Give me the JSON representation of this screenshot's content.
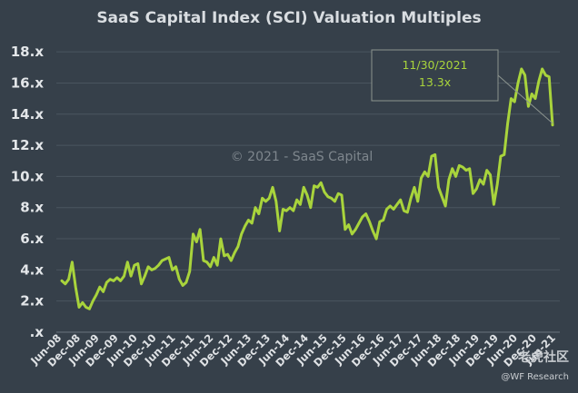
{
  "brand": {
    "logo_text": "老虎社区",
    "sub_text": "@WF Research"
  },
  "chart_data": {
    "type": "line",
    "title": "SaaS Capital Index (SCI) Valuation Multiples",
    "watermark": "© 2021 - SaaS Capital",
    "xlabel": "",
    "ylabel": "",
    "ylim": [
      0,
      19
    ],
    "grid": true,
    "y_ticks": [
      {
        "value": 0,
        "label": ".x"
      },
      {
        "value": 2,
        "label": "2.x"
      },
      {
        "value": 4,
        "label": "4.x"
      },
      {
        "value": 6,
        "label": "6.x"
      },
      {
        "value": 8,
        "label": "8.x"
      },
      {
        "value": 10,
        "label": "10.x"
      },
      {
        "value": 12,
        "label": "12.x"
      },
      {
        "value": 14,
        "label": "14.x"
      },
      {
        "value": 16,
        "label": "16.x"
      },
      {
        "value": 18,
        "label": "18.x"
      }
    ],
    "x_ticks": [
      "Jun-08",
      "Dec-08",
      "Jun-09",
      "Dec-09",
      "Jun-10",
      "Dec-10",
      "Jun-11",
      "Dec-11",
      "Jun-12",
      "Dec-12",
      "Jun-13",
      "Dec-13",
      "Jun-14",
      "Dec-14",
      "Jun-15",
      "Dec-15",
      "Jun-16",
      "Dec-16",
      "Jun-17",
      "Dec-17",
      "Jun-18",
      "Dec-18",
      "Jun-19",
      "Dec-19",
      "Jun-20",
      "Dec-20",
      "Jun-21"
    ],
    "series": [
      {
        "name": "SCI Valuation Multiple",
        "color": "#a9d43c",
        "points": [
          [
            0,
            3.3
          ],
          [
            1,
            3.1
          ],
          [
            2,
            3.4
          ],
          [
            3,
            4.5
          ],
          [
            4,
            2.9
          ],
          [
            5,
            1.6
          ],
          [
            6,
            1.9
          ],
          [
            7,
            1.6
          ],
          [
            8,
            1.5
          ],
          [
            9,
            2.0
          ],
          [
            10,
            2.4
          ],
          [
            11,
            2.9
          ],
          [
            12,
            2.6
          ],
          [
            13,
            3.2
          ],
          [
            14,
            3.4
          ],
          [
            15,
            3.3
          ],
          [
            16,
            3.5
          ],
          [
            17,
            3.3
          ],
          [
            18,
            3.6
          ],
          [
            19,
            4.5
          ],
          [
            20,
            3.6
          ],
          [
            21,
            4.3
          ],
          [
            22,
            4.4
          ],
          [
            23,
            3.1
          ],
          [
            24,
            3.6
          ],
          [
            25,
            4.2
          ],
          [
            26,
            4.0
          ],
          [
            27,
            4.1
          ],
          [
            28,
            4.3
          ],
          [
            29,
            4.6
          ],
          [
            30,
            4.7
          ],
          [
            31,
            4.8
          ],
          [
            32,
            4.0
          ],
          [
            33,
            4.2
          ],
          [
            34,
            3.4
          ],
          [
            35,
            3.0
          ],
          [
            36,
            3.2
          ],
          [
            37,
            3.9
          ],
          [
            38,
            6.3
          ],
          [
            39,
            5.8
          ],
          [
            40,
            6.6
          ],
          [
            41,
            4.6
          ],
          [
            42,
            4.5
          ],
          [
            43,
            4.2
          ],
          [
            44,
            4.8
          ],
          [
            45,
            4.3
          ],
          [
            46,
            6.0
          ],
          [
            47,
            4.9
          ],
          [
            48,
            5.0
          ],
          [
            49,
            4.6
          ],
          [
            50,
            5.1
          ],
          [
            51,
            5.5
          ],
          [
            52,
            6.3
          ],
          [
            53,
            6.8
          ],
          [
            54,
            7.2
          ],
          [
            55,
            7.0
          ],
          [
            56,
            8.0
          ],
          [
            57,
            7.6
          ],
          [
            58,
            8.6
          ],
          [
            59,
            8.4
          ],
          [
            60,
            8.6
          ],
          [
            61,
            9.3
          ],
          [
            62,
            8.4
          ],
          [
            63,
            6.5
          ],
          [
            64,
            7.9
          ],
          [
            65,
            7.8
          ],
          [
            66,
            8.0
          ],
          [
            67,
            7.8
          ],
          [
            68,
            8.5
          ],
          [
            69,
            8.2
          ],
          [
            70,
            9.3
          ],
          [
            71,
            8.8
          ],
          [
            72,
            8.0
          ],
          [
            73,
            9.4
          ],
          [
            74,
            9.3
          ],
          [
            75,
            9.6
          ],
          [
            76,
            9.0
          ],
          [
            77,
            8.7
          ],
          [
            78,
            8.6
          ],
          [
            79,
            8.4
          ],
          [
            80,
            8.9
          ],
          [
            81,
            8.8
          ],
          [
            82,
            6.6
          ],
          [
            83,
            6.9
          ],
          [
            84,
            6.3
          ],
          [
            85,
            6.6
          ],
          [
            86,
            7.0
          ],
          [
            87,
            7.4
          ],
          [
            88,
            7.6
          ],
          [
            89,
            7.1
          ],
          [
            90,
            6.5
          ],
          [
            91,
            6.0
          ],
          [
            92,
            7.1
          ],
          [
            93,
            7.2
          ],
          [
            94,
            7.9
          ],
          [
            95,
            8.1
          ],
          [
            96,
            7.9
          ],
          [
            97,
            8.2
          ],
          [
            98,
            8.5
          ],
          [
            99,
            7.8
          ],
          [
            100,
            7.7
          ],
          [
            101,
            8.6
          ],
          [
            102,
            9.3
          ],
          [
            103,
            8.4
          ],
          [
            104,
            9.9
          ],
          [
            105,
            10.3
          ],
          [
            106,
            10.0
          ],
          [
            107,
            11.3
          ],
          [
            108,
            11.4
          ],
          [
            109,
            9.3
          ],
          [
            110,
            8.7
          ],
          [
            111,
            8.1
          ],
          [
            112,
            9.8
          ],
          [
            113,
            10.5
          ],
          [
            114,
            10.0
          ],
          [
            115,
            10.7
          ],
          [
            116,
            10.6
          ],
          [
            117,
            10.4
          ],
          [
            118,
            10.5
          ],
          [
            119,
            8.9
          ],
          [
            120,
            9.2
          ],
          [
            121,
            9.8
          ],
          [
            122,
            9.5
          ],
          [
            123,
            10.4
          ],
          [
            124,
            10.1
          ],
          [
            125,
            8.2
          ],
          [
            126,
            9.5
          ],
          [
            127,
            11.3
          ],
          [
            128,
            11.4
          ],
          [
            129,
            13.4
          ],
          [
            130,
            15.0
          ],
          [
            131,
            14.8
          ],
          [
            132,
            16.0
          ],
          [
            133,
            16.9
          ],
          [
            134,
            16.5
          ],
          [
            135,
            14.5
          ],
          [
            136,
            15.3
          ],
          [
            137,
            15.0
          ],
          [
            138,
            16.1
          ],
          [
            139,
            16.9
          ],
          [
            140,
            16.5
          ],
          [
            141,
            16.4
          ],
          [
            142,
            13.3
          ]
        ]
      }
    ],
    "annotation": {
      "date": "11/30/2021",
      "value_label": "13.3x",
      "target_point": [
        142,
        13.3
      ]
    }
  }
}
